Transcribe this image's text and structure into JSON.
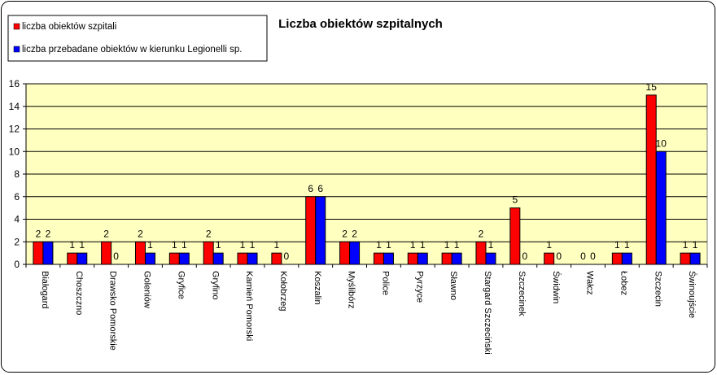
{
  "chart_data": {
    "type": "bar",
    "title": "Liczba obiektów szpitalnych",
    "xlabel": "",
    "ylabel": "",
    "ylim": [
      0,
      16
    ],
    "yticks": [
      0,
      2,
      4,
      6,
      8,
      10,
      12,
      14,
      16
    ],
    "grid": true,
    "legend_position": "top-left",
    "plot_background": "#ffffc0",
    "categories": [
      "Białogard",
      "Choszczno",
      "Drawsko Pomorskie",
      "Goleniów",
      "Gryfice",
      "Gryfino",
      "Kamień Pomorski",
      "Kołobrzeg",
      "Koszalin",
      "Myślibórz",
      "Police",
      "Pyrzyce",
      "Sławno",
      "Stargard Szczeciński",
      "Szczecinek",
      "Świdwin",
      "Wałcz",
      "Łobez",
      "Szczecin",
      "Świnoujście"
    ],
    "series": [
      {
        "name": "liczba  obiektów szpitali",
        "color": "#ff0000",
        "values": [
          2,
          1,
          2,
          2,
          1,
          2,
          1,
          1,
          6,
          2,
          1,
          1,
          1,
          2,
          5,
          1,
          0,
          1,
          15,
          1
        ]
      },
      {
        "name": "liczba przebadane obiektów w kierunku Legionelli sp.",
        "color": "#0000ff",
        "values": [
          2,
          1,
          0,
          1,
          1,
          1,
          1,
          0,
          6,
          2,
          1,
          1,
          1,
          1,
          0,
          0,
          0,
          1,
          10,
          1
        ]
      }
    ]
  }
}
